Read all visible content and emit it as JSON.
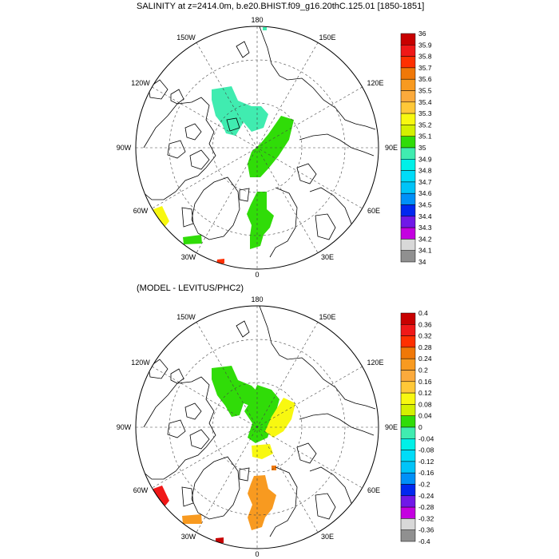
{
  "panel1": {
    "title": "SALINITY at z=2414.0m, b.e20.BHIST.f09_g16.20thC.125.01 [1850-1851]",
    "lon_labels": {
      "top": "180",
      "top_left": "150W",
      "top_right": "150E",
      "upper_left": "120W",
      "upper_right": "120E",
      "left": "90W",
      "right": "90E",
      "lower_left": "60W",
      "lower_right": "60E",
      "bottom_left": "30W",
      "bottom_right": "30E",
      "bottom": "0"
    },
    "colorbar": {
      "labels": [
        "36",
        "35.9",
        "35.8",
        "35.7",
        "35.6",
        "35.5",
        "35.4",
        "35.3",
        "35.2",
        "35.1",
        "35",
        "34.9",
        "34.8",
        "34.7",
        "34.6",
        "34.5",
        "34.4",
        "34.3",
        "34.2",
        "34.1",
        "34"
      ],
      "colors": [
        "#c80000",
        "#f01818",
        "#ff3000",
        "#f07808",
        "#f89a20",
        "#fbaa3c",
        "#ffc838",
        "#f8f810",
        "#d4f000",
        "#30dc08",
        "#40ecb0",
        "#00f0e8",
        "#00dcf8",
        "#00c4f8",
        "#0090f8",
        "#0028f0",
        "#7018e8",
        "#c400e0",
        "#d8d8d8",
        "#909090"
      ]
    }
  },
  "panel2": {
    "title": "(MODEL - LEVITUS/PHC2)",
    "lon_labels": {
      "top": "180",
      "top_left": "150W",
      "top_right": "150E",
      "upper_left": "120W",
      "upper_right": "120E",
      "left": "90W",
      "right": "90E",
      "lower_left": "60W",
      "lower_right": "60E",
      "bottom_left": "30W",
      "bottom_right": "30E",
      "bottom": "0"
    },
    "colorbar": {
      "labels": [
        "0.4",
        "0.36",
        "0.32",
        "0.28",
        "0.24",
        "0.2",
        "0.16",
        "0.12",
        "0.08",
        "0.04",
        "0",
        "-0.04",
        "-0.08",
        "-0.12",
        "-0.16",
        "-0.2",
        "-0.24",
        "-0.28",
        "-0.32",
        "-0.36",
        "-0.4"
      ],
      "colors": [
        "#c80000",
        "#f01818",
        "#ff3000",
        "#f07808",
        "#f89a20",
        "#fbaa3c",
        "#ffc838",
        "#f8f810",
        "#d4f000",
        "#30dc08",
        "#40ecb0",
        "#00f0e8",
        "#00dcf8",
        "#00c4f8",
        "#0090f8",
        "#0028f0",
        "#7018e8",
        "#c400e0",
        "#d8d8d8",
        "#909090"
      ]
    }
  },
  "fields": {
    "panel1": [
      {
        "region": "canada-basin",
        "color": "#40ecb0"
      },
      {
        "region": "makarov-lomonosov",
        "color": "#30dc08"
      },
      {
        "region": "eurasian-basin",
        "color": "#30dc08"
      },
      {
        "region": "labrador-sea",
        "color": "#f8f810"
      },
      {
        "region": "greenland-south",
        "color": "#30dc08"
      },
      {
        "region": "greenland-sea-edge",
        "color": "#ff3000"
      },
      {
        "region": "near-pole-dot",
        "color": "#40ecb0"
      }
    ],
    "panel2": [
      {
        "region": "canada-basin",
        "color": "#30dc08"
      },
      {
        "region": "makarov-lomonosov",
        "color": "#f8f810"
      },
      {
        "region": "lomonosov-ridge",
        "color": "#30dc08"
      },
      {
        "region": "pole-yellow",
        "color": "#f8f810"
      },
      {
        "region": "eurasian-basin",
        "color": "#f89a20"
      },
      {
        "region": "labrador-sea",
        "color": "#f01818"
      },
      {
        "region": "greenland-south",
        "color": "#f89a20"
      },
      {
        "region": "greenland-sea-edge",
        "color": "#c80000"
      },
      {
        "region": "near-pole-dot",
        "color": "#f07808"
      }
    ]
  }
}
